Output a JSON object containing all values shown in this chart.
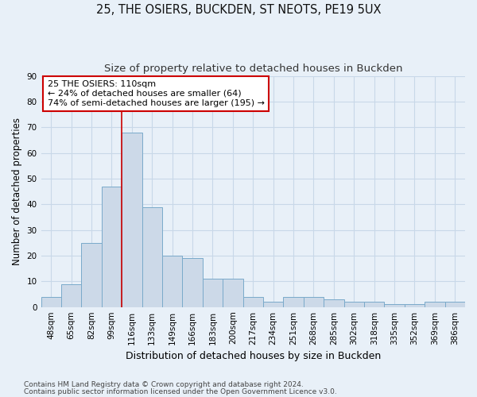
{
  "title_line1": "25, THE OSIERS, BUCKDEN, ST NEOTS, PE19 5UX",
  "title_line2": "Size of property relative to detached houses in Buckden",
  "xlabel": "Distribution of detached houses by size in Buckden",
  "ylabel": "Number of detached properties",
  "bar_values": [
    4,
    9,
    25,
    47,
    68,
    39,
    20,
    19,
    11,
    11,
    4,
    2,
    4,
    4,
    3,
    2,
    2,
    1,
    1,
    2,
    2
  ],
  "bar_labels": [
    "48sqm",
    "65sqm",
    "82sqm",
    "99sqm",
    "116sqm",
    "133sqm",
    "149sqm",
    "166sqm",
    "183sqm",
    "200sqm",
    "217sqm",
    "234sqm",
    "251sqm",
    "268sqm",
    "285sqm",
    "302sqm",
    "318sqm",
    "335sqm",
    "352sqm",
    "369sqm",
    "386sqm"
  ],
  "bar_color": "#ccd9e8",
  "bar_edge_color": "#7aaaca",
  "grid_color": "#c8d8e8",
  "background_color": "#e8f0f8",
  "plot_bg_color": "#e8f0f8",
  "ylim": [
    0,
    90
  ],
  "yticks": [
    0,
    10,
    20,
    30,
    40,
    50,
    60,
    70,
    80,
    90
  ],
  "property_line_color": "#cc0000",
  "property_line_x": 4,
  "annotation_text_line1": "25 THE OSIERS: 110sqm",
  "annotation_text_line2": "← 24% of detached houses are smaller (64)",
  "annotation_text_line3": "74% of semi-detached houses are larger (195) →",
  "annotation_box_color": "#ffffff",
  "annotation_box_edge": "#cc0000",
  "footnote_line1": "Contains HM Land Registry data © Crown copyright and database right 2024.",
  "footnote_line2": "Contains public sector information licensed under the Open Government Licence v3.0.",
  "title_fontsize": 10.5,
  "subtitle_fontsize": 9.5,
  "ylabel_fontsize": 8.5,
  "xlabel_fontsize": 9,
  "tick_fontsize": 7.5,
  "annotation_fontsize": 8,
  "footnote_fontsize": 6.5
}
